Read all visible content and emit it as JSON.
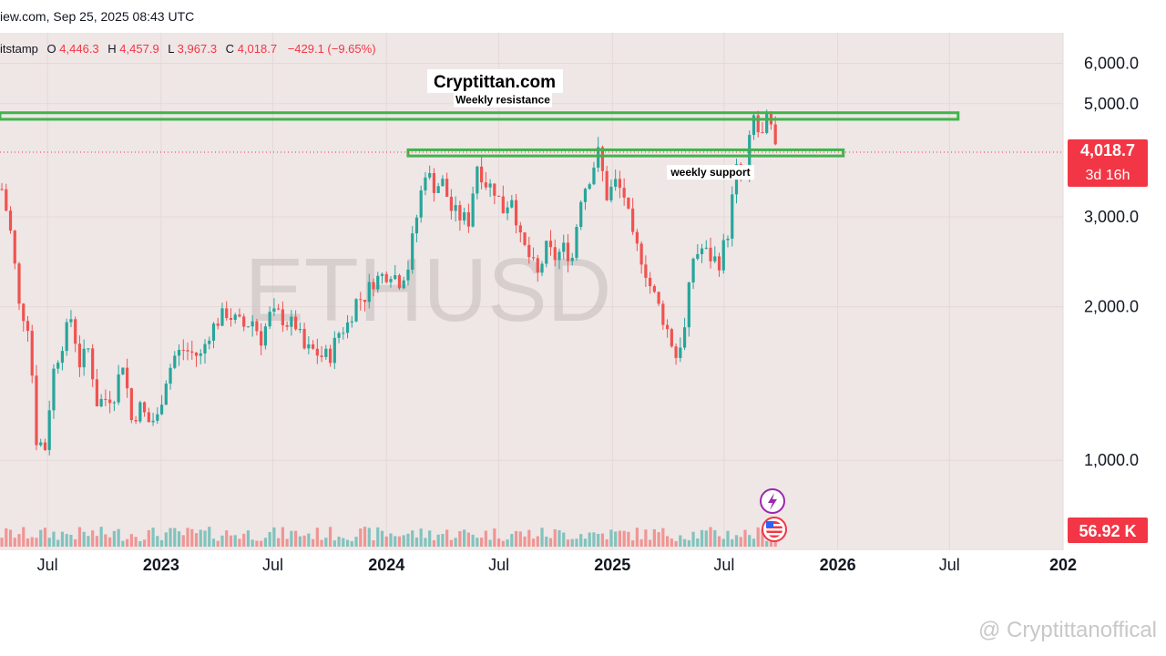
{
  "header": {
    "source_line": "iew.com, Sep 25, 2025 08:43 UTC",
    "ohlc": {
      "exchange": "itstamp",
      "o_label": "O",
      "o": "4,446.3",
      "h_label": "H",
      "h": "4,457.9",
      "l_label": "L",
      "l": "3,967.3",
      "c_label": "C",
      "c": "4,018.7",
      "change": "−429.1 (−9.65%)"
    }
  },
  "brand": "Cryptittan.com",
  "symbol_watermark": "ETHUSD",
  "footer_watermark": "@ Cryptittanoffical",
  "colors": {
    "background": "#efe6e6",
    "up": "#26a69a",
    "down": "#ef5350",
    "zone": "#3fb54a",
    "price_tag": "#f23645"
  },
  "chart_data": {
    "type": "candlestick",
    "symbol": "ETHUSD",
    "timeframe": "weekly",
    "y_ticks": [
      "6,000.0",
      "5,000.0",
      "3,000.0",
      "2,000.0",
      "1,000.0"
    ],
    "y_tick_values": [
      6000,
      5000,
      3000,
      2000,
      1000
    ],
    "ylim": [
      650,
      6500
    ],
    "x_ticks": [
      "Jul",
      "2023",
      "Jul",
      "2024",
      "Jul",
      "2025",
      "Jul",
      "2026",
      "Jul",
      "202"
    ],
    "x_tick_dates": [
      "2022-07-01",
      "2023-01-01",
      "2023-07-01",
      "2024-01-01",
      "2024-07-01",
      "2025-01-01",
      "2025-07-01",
      "2026-01-01",
      "2026-07-01",
      "2027-01-01"
    ],
    "x_range": [
      "2022-04-15",
      "2027-01-01"
    ],
    "current_price": "4,018.7",
    "countdown": "3d 16h",
    "current_price_value": 4018.7,
    "volume_label": "56.92 K",
    "annotations": [
      {
        "label": "Weekly resistance",
        "low": 4660,
        "high": 4800,
        "start": "2022-04-15",
        "end": "2026-07-15"
      },
      {
        "label": "weekly support",
        "low": 3950,
        "high": 4060,
        "start": "2024-02-05",
        "end": "2026-01-10"
      }
    ],
    "closes": [
      [
        "2022-04-18",
        3400
      ],
      [
        "2022-05-02",
        2800
      ],
      [
        "2022-05-16",
        2000
      ],
      [
        "2022-05-30",
        1850
      ],
      [
        "2022-06-13",
        1100
      ],
      [
        "2022-06-27",
        1060
      ],
      [
        "2022-07-11",
        1500
      ],
      [
        "2022-07-25",
        1700
      ],
      [
        "2022-08-08",
        1900
      ],
      [
        "2022-08-22",
        1550
      ],
      [
        "2022-09-05",
        1650
      ],
      [
        "2022-09-19",
        1300
      ],
      [
        "2022-10-03",
        1320
      ],
      [
        "2022-10-17",
        1350
      ],
      [
        "2022-10-31",
        1560
      ],
      [
        "2022-11-14",
        1200
      ],
      [
        "2022-11-28",
        1270
      ],
      [
        "2022-12-12",
        1190
      ],
      [
        "2022-12-26",
        1210
      ],
      [
        "2023-01-09",
        1450
      ],
      [
        "2023-01-23",
        1600
      ],
      [
        "2023-02-06",
        1650
      ],
      [
        "2023-02-20",
        1620
      ],
      [
        "2023-03-06",
        1600
      ],
      [
        "2023-03-20",
        1780
      ],
      [
        "2023-04-03",
        1880
      ],
      [
        "2023-04-17",
        1950
      ],
      [
        "2023-05-01",
        1880
      ],
      [
        "2023-05-15",
        1830
      ],
      [
        "2023-05-29",
        1880
      ],
      [
        "2023-06-12",
        1730
      ],
      [
        "2023-06-26",
        1920
      ],
      [
        "2023-07-10",
        1930
      ],
      [
        "2023-07-24",
        1860
      ],
      [
        "2023-08-07",
        1840
      ],
      [
        "2023-08-21",
        1650
      ],
      [
        "2023-09-04",
        1640
      ],
      [
        "2023-09-18",
        1600
      ],
      [
        "2023-10-02",
        1610
      ],
      [
        "2023-10-16",
        1780
      ],
      [
        "2023-10-30",
        1850
      ],
      [
        "2023-11-13",
        2050
      ],
      [
        "2023-11-27",
        2100
      ],
      [
        "2023-12-11",
        2250
      ],
      [
        "2023-12-25",
        2300
      ],
      [
        "2024-01-08",
        2350
      ],
      [
        "2024-01-22",
        2250
      ],
      [
        "2024-02-05",
        2400
      ],
      [
        "2024-02-19",
        3000
      ],
      [
        "2024-03-04",
        3700
      ],
      [
        "2024-03-18",
        3450
      ],
      [
        "2024-04-01",
        3500
      ],
      [
        "2024-04-15",
        3100
      ],
      [
        "2024-04-29",
        3000
      ],
      [
        "2024-05-13",
        2950
      ],
      [
        "2024-05-27",
        3800
      ],
      [
        "2024-06-10",
        3500
      ],
      [
        "2024-06-24",
        3400
      ],
      [
        "2024-07-08",
        3100
      ],
      [
        "2024-07-22",
        3300
      ],
      [
        "2024-08-05",
        2700
      ],
      [
        "2024-08-19",
        2500
      ],
      [
        "2024-09-02",
        2300
      ],
      [
        "2024-09-16",
        2600
      ],
      [
        "2024-09-30",
        2500
      ],
      [
        "2024-10-14",
        2600
      ],
      [
        "2024-10-28",
        2500
      ],
      [
        "2024-11-11",
        3300
      ],
      [
        "2024-11-25",
        3600
      ],
      [
        "2024-12-09",
        4000
      ],
      [
        "2024-12-23",
        3300
      ],
      [
        "2025-01-06",
        3500
      ],
      [
        "2025-01-20",
        3300
      ],
      [
        "2025-02-03",
        2700
      ],
      [
        "2025-02-17",
        2500
      ],
      [
        "2025-03-03",
        2200
      ],
      [
        "2025-03-17",
        2000
      ],
      [
        "2025-03-31",
        1800
      ],
      [
        "2025-04-14",
        1600
      ],
      [
        "2025-04-28",
        1800
      ],
      [
        "2025-05-12",
        2500
      ],
      [
        "2025-05-26",
        2600
      ],
      [
        "2025-06-09",
        2500
      ],
      [
        "2025-06-23",
        2450
      ],
      [
        "2025-07-07",
        2800
      ],
      [
        "2025-07-21",
        3700
      ],
      [
        "2025-08-04",
        3600
      ],
      [
        "2025-08-11",
        4200
      ],
      [
        "2025-08-18",
        4700
      ],
      [
        "2025-08-25",
        4400
      ],
      [
        "2025-09-01",
        4300
      ],
      [
        "2025-09-08",
        4650
      ],
      [
        "2025-09-15",
        4450
      ],
      [
        "2025-09-22",
        4018.7
      ]
    ]
  }
}
